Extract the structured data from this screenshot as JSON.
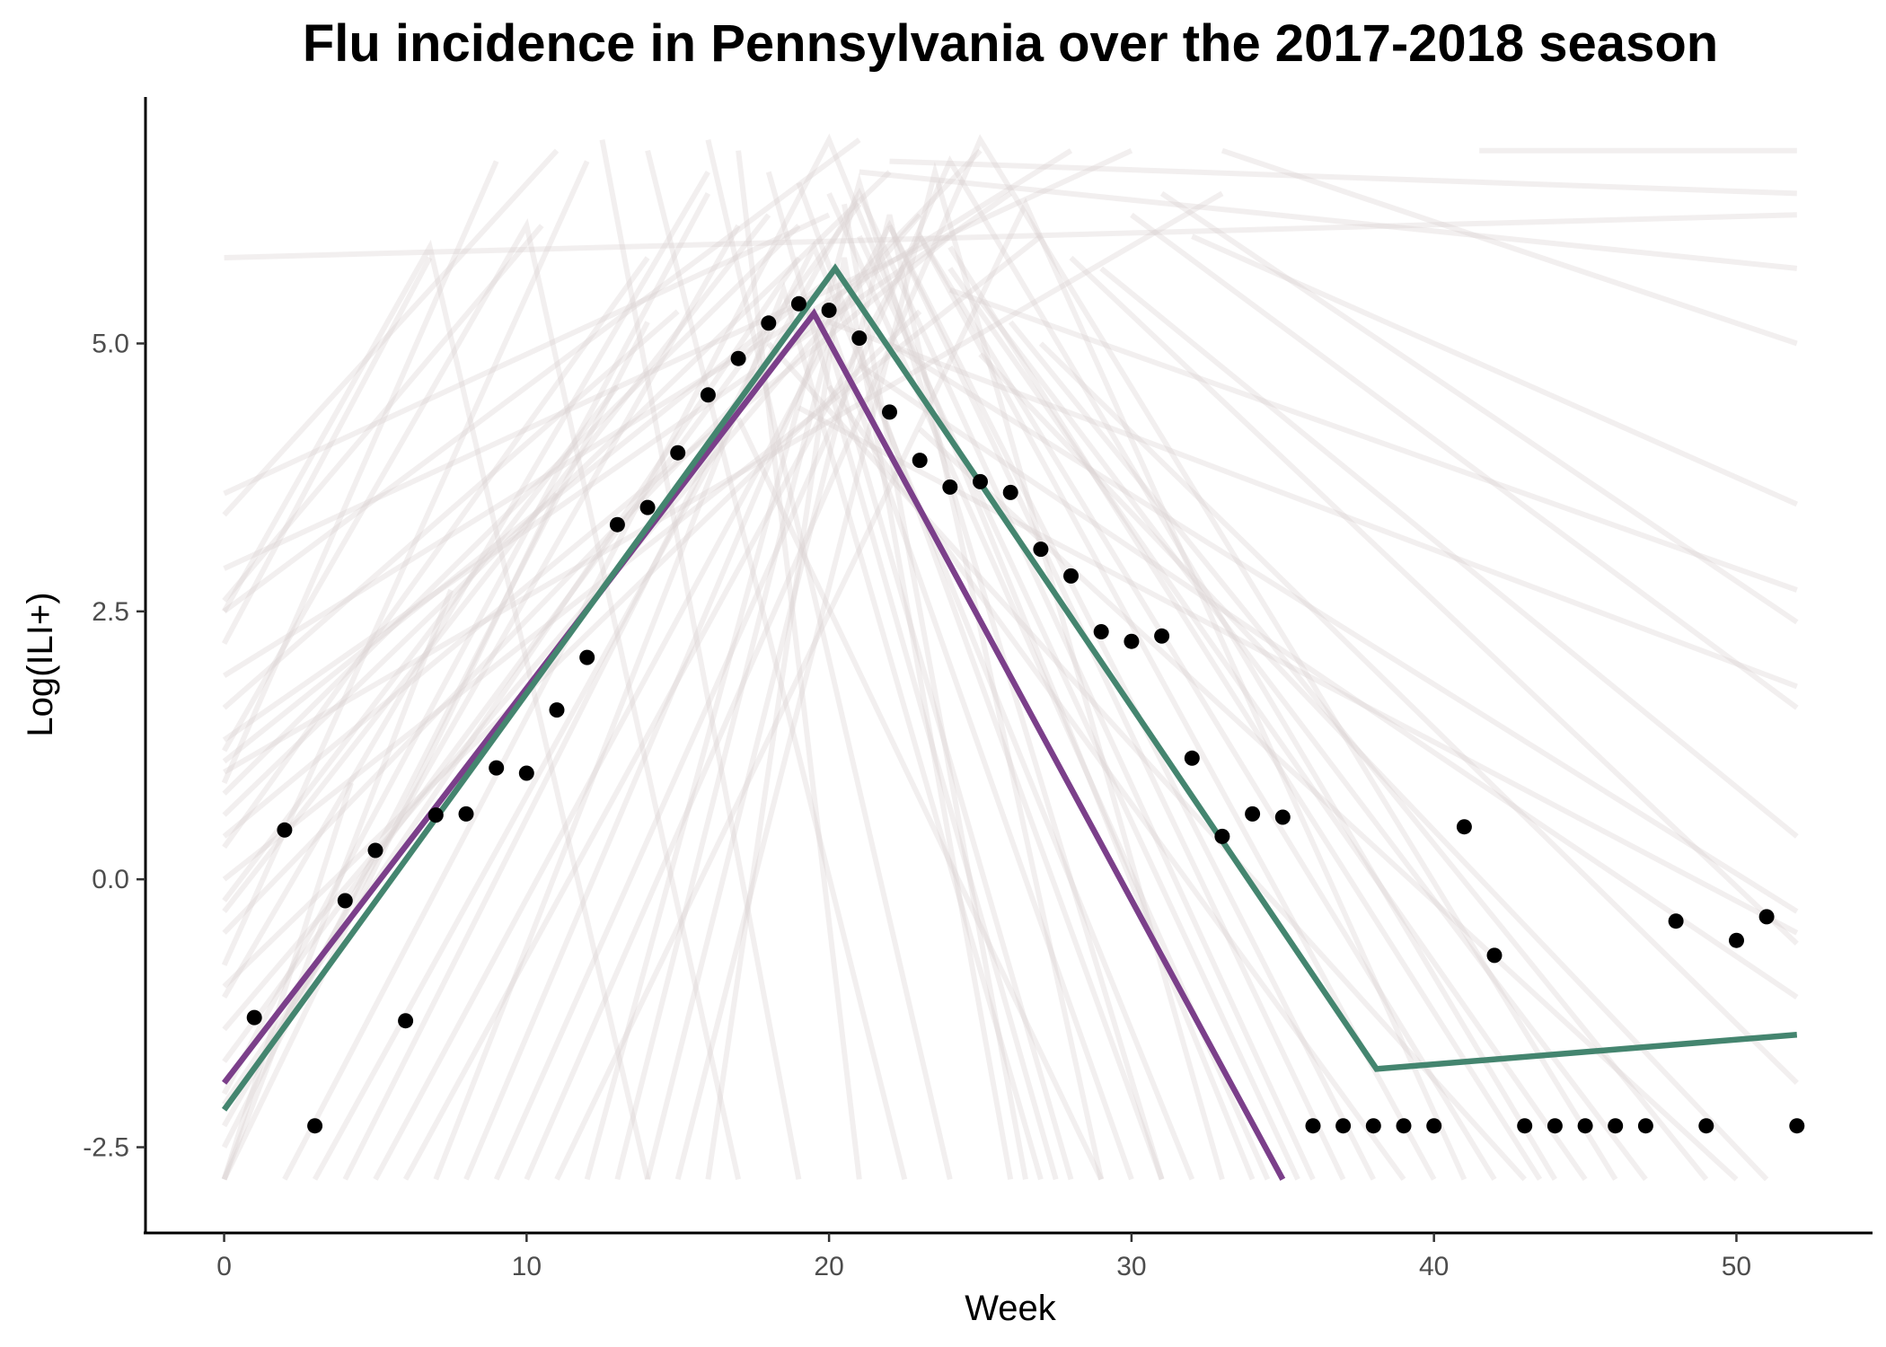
{
  "chart_data": {
    "type": "line",
    "title": "Flu incidence in Pennsylvania over the 2017-2018 season",
    "xlabel": "Week",
    "ylabel": "Log(ILI+)",
    "xlim": [
      -2.6,
      54.5
    ],
    "ylim": [
      -3.3,
      7.3
    ],
    "x_ticks": [
      0,
      10,
      20,
      30,
      40,
      50
    ],
    "x_tick_labels": [
      "0",
      "10",
      "20",
      "30",
      "40",
      "50"
    ],
    "y_ticks": [
      -2.5,
      0.0,
      2.5,
      5.0
    ],
    "y_tick_labels": [
      "-2.5",
      "0.0",
      "2.5",
      "5.0"
    ],
    "grid": false,
    "legend": "none",
    "observed_points": {
      "color": "#000000",
      "x": [
        1,
        2,
        3,
        4,
        5,
        6,
        7,
        8,
        9,
        10,
        11,
        12,
        13,
        14,
        15,
        16,
        17,
        18,
        19,
        20,
        21,
        22,
        23,
        24,
        25,
        26,
        27,
        28,
        29,
        30,
        31,
        32,
        33,
        34,
        35,
        36,
        37,
        38,
        39,
        40,
        41,
        42,
        43,
        44,
        45,
        46,
        47,
        48,
        49,
        50,
        51,
        52
      ],
      "y": [
        -1.29,
        0.46,
        -2.3,
        -0.2,
        0.27,
        -1.32,
        0.6,
        0.61,
        1.04,
        0.99,
        1.58,
        2.07,
        3.31,
        3.47,
        3.98,
        4.52,
        4.86,
        5.19,
        5.37,
        5.31,
        5.05,
        4.36,
        3.91,
        3.66,
        3.71,
        3.61,
        3.08,
        2.83,
        2.31,
        2.22,
        2.27,
        1.13,
        0.4,
        0.61,
        0.58,
        -2.3,
        -2.3,
        -2.3,
        -2.3,
        -2.3,
        0.49,
        -0.71,
        -2.3,
        -2.3,
        -2.3,
        -2.3,
        -2.3,
        -0.39,
        -2.3,
        -0.57,
        -0.35,
        -2.3
      ]
    },
    "fits": [
      {
        "color": "#7b3f8a",
        "x": [
          0,
          19.5,
          35
        ],
        "y": [
          -1.9,
          5.28,
          -2.8
        ]
      },
      {
        "color": "#44856f",
        "x": [
          0,
          20.2,
          38.1,
          52
        ],
        "y": [
          -2.15,
          5.7,
          -1.77,
          -1.45
        ]
      }
    ],
    "sample_lines_color": "#d9d2d2",
    "sample_lines": [
      {
        "x": [
          0,
          4.2
        ],
        "y": [
          -2.8,
          0.9
        ]
      },
      {
        "x": [
          0,
          7.5
        ],
        "y": [
          -2.8,
          2.7
        ]
      },
      {
        "x": [
          0,
          11
        ],
        "y": [
          -2.8,
          3.6
        ]
      },
      {
        "x": [
          0,
          14
        ],
        "y": [
          -2.5,
          5.2
        ]
      },
      {
        "x": [
          0,
          17
        ],
        "y": [
          -2.3,
          6.1
        ]
      },
      {
        "x": [
          0,
          19
        ],
        "y": [
          -2.1,
          5.8
        ]
      },
      {
        "x": [
          0,
          21
        ],
        "y": [
          -1.7,
          6.3
        ]
      },
      {
        "x": [
          0,
          23
        ],
        "y": [
          -1.4,
          6.2
        ]
      },
      {
        "x": [
          0,
          16
        ],
        "y": [
          -1.1,
          6.6
        ]
      },
      {
        "x": [
          0,
          12
        ],
        "y": [
          -0.8,
          6.7
        ]
      },
      {
        "x": [
          0,
          25
        ],
        "y": [
          -0.5,
          6.8
        ]
      },
      {
        "x": [
          0,
          18
        ],
        "y": [
          -0.3,
          6.2
        ]
      },
      {
        "x": [
          0,
          27
        ],
        "y": [
          0.0,
          6.0
        ]
      },
      {
        "x": [
          0,
          14
        ],
        "y": [
          0.3,
          5.8
        ]
      },
      {
        "x": [
          0,
          22
        ],
        "y": [
          0.6,
          6.6
        ]
      },
      {
        "x": [
          0,
          9
        ],
        "y": [
          0.9,
          6.7
        ]
      },
      {
        "x": [
          0,
          20
        ],
        "y": [
          1.1,
          5.6
        ]
      },
      {
        "x": [
          0,
          26
        ],
        "y": [
          1.3,
          6.4
        ]
      },
      {
        "x": [
          0,
          15
        ],
        "y": [
          1.6,
          5.3
        ]
      },
      {
        "x": [
          0,
          28
        ],
        "y": [
          1.9,
          6.8
        ]
      },
      {
        "x": [
          0,
          6.8
        ],
        "y": [
          2.2,
          5.8
        ]
      },
      {
        "x": [
          0,
          21
        ],
        "y": [
          2.5,
          6.9
        ]
      },
      {
        "x": [
          0,
          10.5
        ],
        "y": [
          2.6,
          6.1
        ]
      },
      {
        "x": [
          0,
          30
        ],
        "y": [
          2.9,
          6.8
        ]
      },
      {
        "x": [
          0,
          11
        ],
        "y": [
          3.4,
          6.8
        ]
      },
      {
        "x": [
          0,
          20
        ],
        "y": [
          3.6,
          6.2
        ]
      },
      {
        "x": [
          0,
          13
        ],
        "y": [
          -0.2,
          4.6
        ]
      },
      {
        "x": [
          0,
          23
        ],
        "y": [
          -1.0,
          5.3
        ]
      },
      {
        "x": [
          0,
          24
        ],
        "y": [
          0.4,
          6.0
        ]
      },
      {
        "x": [
          0,
          33
        ],
        "y": [
          1.0,
          6.4
        ]
      },
      {
        "x": [
          0,
          16
        ],
        "y": [
          -2.0,
          6.4
        ]
      },
      {
        "x": [
          0,
          19
        ],
        "y": [
          0.8,
          6.1
        ]
      },
      {
        "x": [
          0,
          6.8,
          14
        ],
        "y": [
          2.5,
          5.9,
          -2.8
        ]
      },
      {
        "x": [
          0,
          10,
          17
        ],
        "y": [
          1.2,
          6.1,
          -2.8
        ]
      },
      {
        "x": [
          0,
          52
        ],
        "y": [
          5.8,
          6.2
        ]
      },
      {
        "x": [
          2,
          20,
          34
        ],
        "y": [
          -2.8,
          6.9,
          -2.8
        ]
      },
      {
        "x": [
          3,
          21,
          36
        ],
        "y": [
          -2.8,
          6.4,
          -2.8
        ]
      },
      {
        "x": [
          5,
          22,
          38
        ],
        "y": [
          -2.8,
          6.1,
          -2.8
        ]
      },
      {
        "x": [
          6,
          23,
          42
        ],
        "y": [
          -2.8,
          6.0,
          -2.8
        ]
      },
      {
        "x": [
          8,
          20,
          30
        ],
        "y": [
          -2.8,
          5.2,
          -2.8
        ]
      },
      {
        "x": [
          9,
          24,
          44
        ],
        "y": [
          -2.8,
          6.7,
          -2.8
        ]
      },
      {
        "x": [
          10,
          25,
          46
        ],
        "y": [
          -2.8,
          6.9,
          -2.8
        ]
      },
      {
        "x": [
          12,
          21,
          31
        ],
        "y": [
          -2.8,
          6.5,
          -2.8
        ]
      },
      {
        "x": [
          13,
          20,
          28
        ],
        "y": [
          -2.8,
          5.0,
          -2.8
        ]
      },
      {
        "x": [
          14,
          22,
          29
        ],
        "y": [
          -2.8,
          6.2,
          -2.8
        ]
      },
      {
        "x": [
          7,
          18.5,
          27
        ],
        "y": [
          -2.8,
          5.5,
          -2.8
        ]
      },
      {
        "x": [
          11,
          26.5,
          41
        ],
        "y": [
          -2.8,
          6.3,
          -2.8
        ]
      },
      {
        "x": [
          4,
          19.5,
          32
        ],
        "y": [
          -2.8,
          5.9,
          -2.8
        ]
      },
      {
        "x": [
          15,
          23.5,
          33
        ],
        "y": [
          -2.8,
          6.6,
          -2.8
        ]
      },
      {
        "x": [
          16,
          20.5,
          26
        ],
        "y": [
          -2.8,
          5.8,
          -2.8
        ]
      },
      {
        "x": [
          17,
          21
        ],
        "y": [
          6.8,
          -2.8
        ]
      },
      {
        "x": [
          12.5,
          19
        ],
        "y": [
          6.9,
          -2.8
        ]
      },
      {
        "x": [
          16,
          24
        ],
        "y": [
          6.9,
          -2.8
        ]
      },
      {
        "x": [
          20.5,
          26.5
        ],
        "y": [
          6.3,
          -2.8
        ]
      },
      {
        "x": [
          14,
          22.5
        ],
        "y": [
          6.8,
          -2.8
        ]
      },
      {
        "x": [
          18,
          27.5
        ],
        "y": [
          6.6,
          -2.8
        ]
      },
      {
        "x": [
          19,
          31
        ],
        "y": [
          6.5,
          -2.8
        ]
      },
      {
        "x": [
          20,
          34.5
        ],
        "y": [
          6.4,
          -2.8
        ]
      },
      {
        "x": [
          21,
          35.5
        ],
        "y": [
          6.0,
          -2.8
        ]
      },
      {
        "x": [
          22,
          37
        ],
        "y": [
          6.1,
          -2.8
        ]
      },
      {
        "x": [
          23,
          40
        ],
        "y": [
          6.0,
          -2.8
        ]
      },
      {
        "x": [
          24,
          45
        ],
        "y": [
          5.7,
          -2.8
        ]
      },
      {
        "x": [
          25,
          47
        ],
        "y": [
          5.4,
          -2.8
        ]
      },
      {
        "x": [
          26,
          49
        ],
        "y": [
          5.2,
          -2.8
        ]
      },
      {
        "x": [
          27,
          52
        ],
        "y": [
          5.0,
          -1.9
        ]
      },
      {
        "x": [
          28,
          52
        ],
        "y": [
          5.8,
          -0.6
        ]
      },
      {
        "x": [
          29,
          52
        ],
        "y": [
          5.7,
          0.4
        ]
      },
      {
        "x": [
          30,
          52
        ],
        "y": [
          6.2,
          1.6
        ]
      },
      {
        "x": [
          31,
          52
        ],
        "y": [
          6.4,
          2.4
        ]
      },
      {
        "x": [
          32,
          52
        ],
        "y": [
          6.0,
          3.5
        ]
      },
      {
        "x": [
          33,
          52
        ],
        "y": [
          6.8,
          5.0
        ]
      },
      {
        "x": [
          21,
          52
        ],
        "y": [
          6.6,
          5.7
        ]
      },
      {
        "x": [
          22,
          52
        ],
        "y": [
          6.7,
          6.4
        ]
      },
      {
        "x": [
          41.5,
          52
        ],
        "y": [
          6.8,
          6.8
        ]
      },
      {
        "x": [
          24,
          52
        ],
        "y": [
          5.5,
          2.7
        ]
      },
      {
        "x": [
          20,
          52
        ],
        "y": [
          5.2,
          1.8
        ]
      },
      {
        "x": [
          22,
          52
        ],
        "y": [
          5.0,
          -0.3
        ]
      },
      {
        "x": [
          21,
          52
        ],
        "y": [
          4.8,
          -1.1
        ]
      },
      {
        "x": [
          23,
          50
        ],
        "y": [
          4.2,
          -2.8
        ]
      },
      {
        "x": [
          19,
          52
        ],
        "y": [
          4.4,
          -0.5
        ]
      },
      {
        "x": [
          25,
          51
        ],
        "y": [
          4.9,
          -2.8
        ]
      },
      {
        "x": [
          18,
          43
        ],
        "y": [
          5.0,
          -2.8
        ]
      },
      {
        "x": [
          20,
          39
        ],
        "y": [
          4.6,
          -2.8
        ]
      },
      {
        "x": [
          17,
          29
        ],
        "y": [
          4.3,
          -2.8
        ]
      },
      {
        "x": [
          24,
          43.5
        ],
        "y": [
          5.9,
          -2.8
        ]
      }
    ]
  }
}
